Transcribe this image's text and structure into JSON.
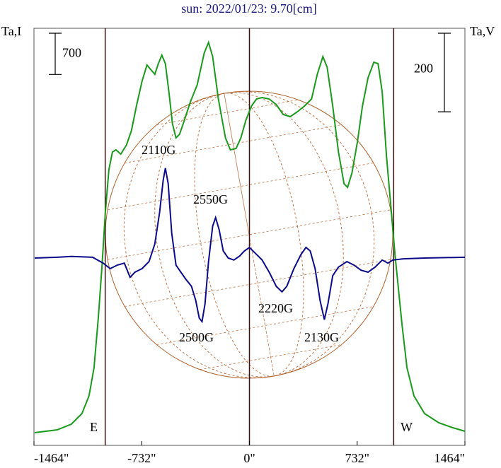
{
  "chart_data": {
    "type": "line",
    "title": "sun: 2022/01/23: 9.70[cm]",
    "xlim": [
      -1464,
      1464
    ],
    "xticks": [
      {
        "value": -1464,
        "label": "-1464\""
      },
      {
        "value": -732,
        "label": "-732\""
      },
      {
        "value": 0,
        "label": "0\""
      },
      {
        "value": 732,
        "label": "732\""
      },
      {
        "value": 1464,
        "label": "1464\""
      }
    ],
    "ylim": [
      0,
      7080
    ],
    "y2lim": [
      -477,
      585
    ],
    "scale_bars": {
      "y": 700,
      "y2": 200
    },
    "vlines": [
      -980,
      0,
      980
    ],
    "limb_labels": [
      "E",
      "W"
    ],
    "annotations": [
      "2110G",
      "2550G",
      "2500G",
      "2220G",
      "2130G"
    ],
    "series": [
      {
        "name": "Ta,I",
        "color": "#1a9a1a",
        "axis": "y",
        "x": [
          -1459,
          -1306,
          -1210,
          -1138,
          -1090,
          -1056,
          -1027,
          -1003,
          -979,
          -955,
          -931,
          -907,
          -874,
          -835,
          -802,
          -768,
          -730,
          -696,
          -672,
          -643,
          -619,
          -595,
          -571,
          -547,
          -523,
          -499,
          -475,
          -442,
          -403,
          -355,
          -307,
          -278,
          -250,
          -211,
          -163,
          -130,
          -91,
          -58,
          -24,
          14,
          48,
          86,
          134,
          182,
          230,
          278,
          326,
          374,
          422,
          461,
          499,
          528,
          566,
          605,
          643,
          667,
          696,
          734,
          768,
          806,
          845,
          874,
          902,
          931,
          960,
          989,
          1013,
          1037,
          1070,
          1118,
          1190,
          1286,
          1382,
          1464
        ],
        "values": [
          216,
          264,
          360,
          540,
          840,
          1320,
          2160,
          3000,
          3960,
          4680,
          4980,
          5016,
          4944,
          5100,
          5340,
          5760,
          6180,
          6456,
          6384,
          6300,
          6480,
          6624,
          6480,
          6000,
          5460,
          5220,
          5280,
          5520,
          5820,
          6120,
          6660,
          6840,
          6600,
          5880,
          5220,
          5016,
          5040,
          5220,
          5520,
          5760,
          5880,
          5904,
          5880,
          5784,
          5616,
          5580,
          5664,
          5760,
          5880,
          6300,
          6600,
          6420,
          5760,
          4980,
          4440,
          4380,
          4620,
          5160,
          5760,
          6240,
          6504,
          6480,
          6000,
          4920,
          4080,
          3240,
          2640,
          2040,
          1320,
          840,
          540,
          384,
          300,
          240
        ]
      },
      {
        "name": "Ta,V",
        "color": "#0a0a8a",
        "axis": "y2",
        "x": [
          -1459,
          -1306,
          -1210,
          -1066,
          -994,
          -946,
          -898,
          -850,
          -811,
          -778,
          -730,
          -682,
          -643,
          -610,
          -586,
          -571,
          -552,
          -528,
          -499,
          -466,
          -432,
          -394,
          -365,
          -341,
          -322,
          -302,
          -278,
          -250,
          -230,
          -206,
          -178,
          -144,
          -106,
          -67,
          -34,
          0,
          38,
          86,
          134,
          182,
          221,
          254,
          302,
          350,
          384,
          413,
          446,
          480,
          509,
          533,
          566,
          605,
          662,
          710,
          758,
          806,
          854,
          902,
          941,
          974,
          1046,
          1190,
          1464
        ],
        "values": [
          0,
          2,
          4,
          2,
          -13,
          -27,
          -18,
          -13,
          -49,
          -36,
          -27,
          -9,
          36,
          117,
          198,
          229,
          189,
          63,
          -18,
          -36,
          -54,
          -72,
          -108,
          -153,
          -162,
          -117,
          -9,
          81,
          103,
          72,
          18,
          0,
          -5,
          5,
          18,
          27,
          13,
          -5,
          -36,
          -72,
          -86,
          -72,
          -27,
          9,
          27,
          18,
          -27,
          -108,
          -157,
          -117,
          -45,
          -23,
          -9,
          -18,
          -31,
          -36,
          -23,
          -5,
          -13,
          -5,
          -2,
          0,
          2
        ]
      }
    ]
  }
}
